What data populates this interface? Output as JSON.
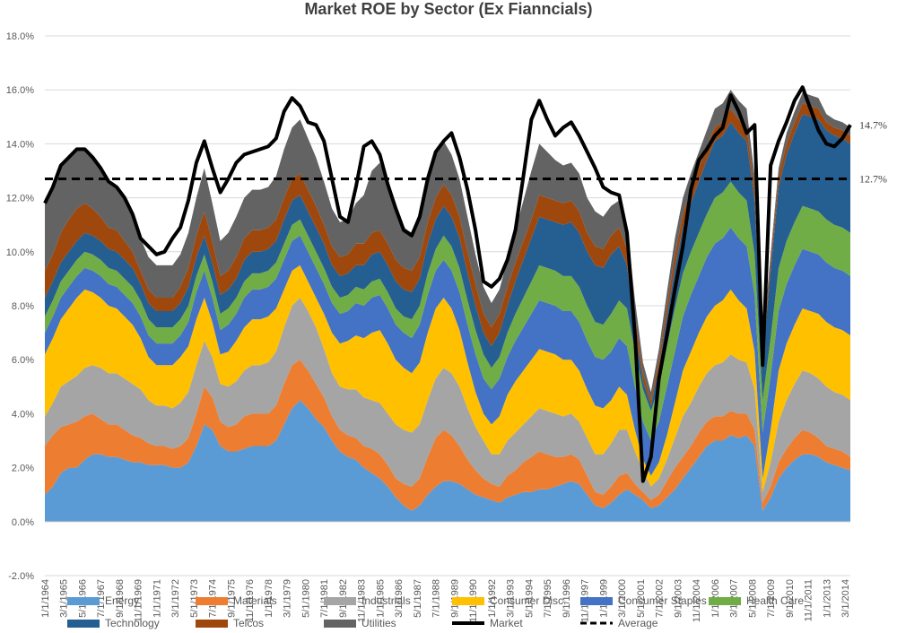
{
  "chart_data": {
    "type": "area",
    "stacked": true,
    "title": "Market ROE by Sector (Ex Fianncials)",
    "xlabel": "",
    "ylabel": "",
    "ylim": [
      -2.0,
      18.0
    ],
    "y_ticks": [
      "18.0%",
      "16.0%",
      "14.0%",
      "12.0%",
      "10.0%",
      "8.0%",
      "6.0%",
      "4.0%",
      "2.0%",
      "0.0%",
      "-2.0%"
    ],
    "x_ticks": [
      "1/1/1964",
      "3/1/1965",
      "5/1/1966",
      "7/1/1967",
      "9/1/1968",
      "11/1/1969",
      "1/1/1971",
      "3/1/1972",
      "5/1/1973",
      "7/1/1974",
      "9/1/1975",
      "11/1/1976",
      "1/1/1978",
      "3/1/1979",
      "5/1/1980",
      "7/1/1981",
      "9/1/1982",
      "11/1/1983",
      "1/1/1985",
      "3/1/1986",
      "5/1/1987",
      "7/1/1988",
      "9/1/1989",
      "11/1/1990",
      "1/1/1992",
      "3/1/1993",
      "5/1/1994",
      "7/1/1995",
      "9/1/1996",
      "11/1/1997",
      "1/1/1999",
      "3/1/2000",
      "5/1/2001",
      "7/1/2002",
      "9/1/2003",
      "11/1/2004",
      "1/1/2006",
      "3/1/2007",
      "5/1/2008",
      "7/1/2009",
      "9/1/2010",
      "11/1/2011",
      "1/1/2013",
      "3/1/2014"
    ],
    "x": [
      1964.0,
      1964.5,
      1965.0,
      1965.5,
      1966.0,
      1966.5,
      1967.0,
      1967.5,
      1968.0,
      1968.5,
      1969.0,
      1969.5,
      1970.0,
      1970.5,
      1971.0,
      1971.5,
      1972.0,
      1972.5,
      1973.0,
      1973.5,
      1974.0,
      1974.5,
      1975.0,
      1975.5,
      1976.0,
      1976.5,
      1977.0,
      1977.5,
      1978.0,
      1978.5,
      1979.0,
      1979.5,
      1980.0,
      1980.5,
      1981.0,
      1981.5,
      1982.0,
      1982.5,
      1983.0,
      1983.5,
      1984.0,
      1984.5,
      1985.0,
      1985.5,
      1986.0,
      1986.5,
      1987.0,
      1987.5,
      1988.0,
      1988.5,
      1989.0,
      1989.5,
      1990.0,
      1990.5,
      1991.0,
      1991.5,
      1992.0,
      1992.5,
      1993.0,
      1993.5,
      1994.0,
      1994.5,
      1995.0,
      1995.5,
      1996.0,
      1996.5,
      1997.0,
      1997.5,
      1998.0,
      1998.5,
      1999.0,
      1999.5,
      2000.0,
      2000.5,
      2001.0,
      2001.5,
      2002.0,
      2002.5,
      2003.0,
      2003.5,
      2004.0,
      2004.5,
      2005.0,
      2005.5,
      2006.0,
      2006.5,
      2007.0,
      2007.5,
      2008.0,
      2008.5,
      2009.0,
      2009.5,
      2010.0,
      2010.5,
      2011.0,
      2011.5,
      2012.0,
      2012.5,
      2013.0,
      2013.5,
      2014.0,
      2014.5
    ],
    "series": [
      {
        "name": "Energy",
        "color": "#5B9BD5",
        "values": [
          1.0,
          1.3,
          1.8,
          2.0,
          2.0,
          2.3,
          2.5,
          2.5,
          2.4,
          2.4,
          2.3,
          2.2,
          2.2,
          2.1,
          2.1,
          2.1,
          2.0,
          2.0,
          2.2,
          2.8,
          3.6,
          3.4,
          2.8,
          2.6,
          2.6,
          2.7,
          2.8,
          2.8,
          2.8,
          3.0,
          3.6,
          4.2,
          4.5,
          4.2,
          3.8,
          3.5,
          3.0,
          2.6,
          2.4,
          2.3,
          2.0,
          1.8,
          1.6,
          1.3,
          0.9,
          0.6,
          0.4,
          0.6,
          1.0,
          1.3,
          1.5,
          1.5,
          1.4,
          1.2,
          1.0,
          0.9,
          0.8,
          0.7,
          0.9,
          1.0,
          1.1,
          1.1,
          1.2,
          1.2,
          1.3,
          1.4,
          1.5,
          1.4,
          1.0,
          0.6,
          0.5,
          0.7,
          1.0,
          1.2,
          1.0,
          0.8,
          0.5,
          0.6,
          0.9,
          1.2,
          1.6,
          2.0,
          2.4,
          2.8,
          3.0,
          3.0,
          3.2,
          3.1,
          3.2,
          2.8,
          0.4,
          0.9,
          1.6,
          2.0,
          2.3,
          2.5,
          2.5,
          2.4,
          2.2,
          2.1,
          2.0,
          1.9
        ]
      },
      {
        "name": "Materials",
        "color": "#ED7D31",
        "values": [
          1.8,
          1.9,
          1.7,
          1.6,
          1.7,
          1.6,
          1.5,
          1.3,
          1.2,
          1.2,
          1.1,
          1.0,
          0.9,
          0.8,
          0.7,
          0.7,
          0.7,
          0.8,
          0.9,
          1.2,
          1.4,
          1.2,
          0.9,
          0.9,
          1.0,
          1.2,
          1.2,
          1.2,
          1.2,
          1.3,
          1.5,
          1.6,
          1.5,
          1.4,
          1.3,
          1.1,
          0.9,
          0.8,
          0.8,
          0.8,
          0.8,
          0.9,
          0.9,
          0.8,
          0.7,
          0.8,
          0.9,
          1.0,
          1.4,
          1.8,
          1.9,
          1.7,
          1.4,
          1.1,
          0.9,
          0.7,
          0.6,
          0.6,
          0.8,
          0.9,
          1.1,
          1.3,
          1.4,
          1.3,
          1.1,
          1.0,
          1.0,
          0.9,
          0.7,
          0.5,
          0.5,
          0.6,
          0.7,
          0.6,
          0.4,
          0.3,
          0.3,
          0.4,
          0.6,
          0.8,
          0.8,
          0.8,
          0.9,
          0.9,
          0.9,
          0.9,
          0.9,
          0.9,
          0.8,
          0.6,
          0.3,
          0.4,
          0.6,
          0.7,
          0.8,
          0.9,
          0.8,
          0.7,
          0.6,
          0.6,
          0.6,
          0.5
        ]
      },
      {
        "name": "Industrials",
        "color": "#A5A5A5",
        "values": [
          1.1,
          1.2,
          1.5,
          1.6,
          1.7,
          1.8,
          1.8,
          1.9,
          1.9,
          1.9,
          1.9,
          1.9,
          1.8,
          1.6,
          1.5,
          1.5,
          1.5,
          1.6,
          1.7,
          1.8,
          1.7,
          1.5,
          1.4,
          1.5,
          1.6,
          1.7,
          1.8,
          1.8,
          1.9,
          2.0,
          2.1,
          2.2,
          2.3,
          2.2,
          2.1,
          1.8,
          1.6,
          1.6,
          1.7,
          1.8,
          1.8,
          1.8,
          1.9,
          1.9,
          2.0,
          2.0,
          2.0,
          2.0,
          2.1,
          2.2,
          2.3,
          2.3,
          2.2,
          1.9,
          1.6,
          1.4,
          1.1,
          1.2,
          1.3,
          1.4,
          1.4,
          1.5,
          1.6,
          1.6,
          1.6,
          1.5,
          1.5,
          1.4,
          1.4,
          1.4,
          1.5,
          1.6,
          1.7,
          1.6,
          1.2,
          0.8,
          0.5,
          0.6,
          0.8,
          1.1,
          1.5,
          1.6,
          1.7,
          1.8,
          1.9,
          2.0,
          2.1,
          2.0,
          1.9,
          1.5,
          0.4,
          0.9,
          1.5,
          1.8,
          2.0,
          2.2,
          2.2,
          2.2,
          2.2,
          2.1,
          2.1,
          2.1
        ]
      },
      {
        "name": "Consumer Disc.",
        "color": "#FFC000",
        "values": [
          2.3,
          2.4,
          2.5,
          2.7,
          2.9,
          2.9,
          2.7,
          2.6,
          2.5,
          2.4,
          2.3,
          2.2,
          1.9,
          1.6,
          1.5,
          1.5,
          1.6,
          1.7,
          1.7,
          1.7,
          1.6,
          1.3,
          1.1,
          1.3,
          1.5,
          1.6,
          1.7,
          1.7,
          1.7,
          1.6,
          1.4,
          1.3,
          1.2,
          1.1,
          1.1,
          1.3,
          1.5,
          1.6,
          1.8,
          2.0,
          2.2,
          2.5,
          2.7,
          2.6,
          2.4,
          2.3,
          2.2,
          2.3,
          2.5,
          2.6,
          2.6,
          2.4,
          2.1,
          1.7,
          1.3,
          1.0,
          1.1,
          1.4,
          1.7,
          1.9,
          2.0,
          2.1,
          2.2,
          2.2,
          2.2,
          2.1,
          2.0,
          1.9,
          1.8,
          1.8,
          1.7,
          1.6,
          1.6,
          1.3,
          0.8,
          0.4,
          0.4,
          0.6,
          0.9,
          1.3,
          1.7,
          1.9,
          2.0,
          2.1,
          2.2,
          2.3,
          2.4,
          2.2,
          2.0,
          1.4,
          0.5,
          1.2,
          1.9,
          2.1,
          2.2,
          2.3,
          2.3,
          2.4,
          2.4,
          2.4,
          2.4,
          2.4
        ]
      },
      {
        "name": "Consumer Staples",
        "color": "#4472C4",
        "values": [
          0.8,
          0.8,
          0.8,
          0.8,
          0.8,
          0.8,
          0.8,
          0.8,
          0.8,
          0.8,
          0.8,
          0.8,
          0.8,
          0.8,
          0.8,
          0.8,
          0.8,
          0.8,
          0.9,
          1.0,
          1.0,
          0.9,
          0.9,
          1.0,
          1.0,
          1.1,
          1.1,
          1.1,
          1.1,
          1.1,
          1.1,
          1.1,
          1.1,
          1.1,
          1.1,
          1.1,
          1.1,
          1.1,
          1.1,
          1.2,
          1.2,
          1.3,
          1.3,
          1.3,
          1.3,
          1.3,
          1.3,
          1.4,
          1.4,
          1.4,
          1.4,
          1.4,
          1.4,
          1.4,
          1.4,
          1.3,
          1.3,
          1.4,
          1.4,
          1.5,
          1.6,
          1.7,
          1.8,
          1.8,
          1.8,
          1.8,
          1.8,
          1.8,
          1.8,
          1.8,
          1.8,
          1.8,
          1.8,
          1.8,
          1.6,
          1.4,
          1.3,
          1.5,
          1.8,
          1.9,
          2.0,
          2.1,
          2.1,
          2.2,
          2.3,
          2.3,
          2.3,
          2.3,
          2.3,
          2.1,
          1.7,
          2.0,
          2.2,
          2.2,
          2.2,
          2.2,
          2.2,
          2.2,
          2.2,
          2.2,
          2.2,
          2.2
        ]
      },
      {
        "name": "Health Care",
        "color": "#70AD47",
        "values": [
          0.6,
          0.6,
          0.6,
          0.6,
          0.6,
          0.6,
          0.6,
          0.6,
          0.6,
          0.6,
          0.6,
          0.6,
          0.6,
          0.6,
          0.6,
          0.6,
          0.6,
          0.6,
          0.6,
          0.6,
          0.6,
          0.6,
          0.6,
          0.6,
          0.6,
          0.6,
          0.6,
          0.6,
          0.6,
          0.6,
          0.6,
          0.6,
          0.6,
          0.6,
          0.6,
          0.6,
          0.6,
          0.6,
          0.6,
          0.6,
          0.6,
          0.6,
          0.6,
          0.6,
          0.6,
          0.6,
          0.7,
          0.7,
          0.8,
          0.8,
          0.9,
          0.9,
          0.9,
          0.9,
          0.9,
          0.9,
          0.8,
          0.8,
          0.9,
          1.0,
          1.1,
          1.2,
          1.3,
          1.3,
          1.3,
          1.3,
          1.3,
          1.3,
          1.3,
          1.3,
          1.3,
          1.4,
          1.4,
          1.4,
          1.3,
          1.2,
          1.1,
          1.3,
          1.5,
          1.6,
          1.6,
          1.6,
          1.6,
          1.6,
          1.7,
          1.7,
          1.7,
          1.7,
          1.7,
          1.5,
          1.2,
          1.4,
          1.6,
          1.6,
          1.6,
          1.6,
          1.6,
          1.6,
          1.6,
          1.6,
          1.6,
          1.6
        ]
      },
      {
        "name": "Technology",
        "color": "#255E91",
        "values": [
          0.7,
          0.7,
          0.7,
          0.7,
          0.7,
          0.7,
          0.7,
          0.7,
          0.7,
          0.7,
          0.7,
          0.7,
          0.6,
          0.6,
          0.6,
          0.6,
          0.6,
          0.6,
          0.7,
          0.7,
          0.7,
          0.7,
          0.7,
          0.7,
          0.7,
          0.8,
          0.8,
          0.8,
          0.8,
          0.8,
          0.9,
          0.9,
          0.9,
          0.9,
          0.9,
          0.9,
          0.8,
          0.8,
          0.8,
          0.8,
          0.9,
          1.0,
          1.0,
          1.0,
          1.0,
          1.0,
          1.0,
          1.0,
          1.1,
          1.1,
          1.1,
          1.1,
          1.1,
          1.0,
          0.9,
          0.8,
          0.8,
          0.9,
          1.0,
          1.2,
          1.4,
          1.6,
          1.8,
          1.8,
          1.8,
          1.9,
          2.0,
          2.0,
          2.0,
          2.1,
          2.1,
          2.2,
          2.0,
          1.6,
          0.8,
          0.3,
          0.2,
          0.7,
          1.1,
          1.5,
          1.7,
          1.8,
          1.9,
          2.0,
          2.1,
          2.1,
          2.2,
          2.2,
          2.2,
          2.0,
          1.5,
          2.5,
          3.0,
          3.2,
          3.3,
          3.4,
          3.4,
          3.4,
          3.3,
          3.3,
          3.3,
          3.3
        ]
      },
      {
        "name": "Telcos",
        "color": "#9E480E",
        "values": [
          1.0,
          1.0,
          1.1,
          1.2,
          1.2,
          1.1,
          1.0,
          0.9,
          0.8,
          0.8,
          0.7,
          0.6,
          0.5,
          0.5,
          0.5,
          0.5,
          0.5,
          0.6,
          0.7,
          0.8,
          0.9,
          0.8,
          0.7,
          0.7,
          0.8,
          0.8,
          0.8,
          0.8,
          0.8,
          0.8,
          0.8,
          0.8,
          0.8,
          0.8,
          0.8,
          0.7,
          0.7,
          0.7,
          0.7,
          0.8,
          0.8,
          0.8,
          0.8,
          0.8,
          0.8,
          0.8,
          0.8,
          0.8,
          0.8,
          0.8,
          0.8,
          0.8,
          0.8,
          0.8,
          0.8,
          0.7,
          0.7,
          0.7,
          0.7,
          0.7,
          0.7,
          0.7,
          0.8,
          0.8,
          0.8,
          0.8,
          0.8,
          0.8,
          0.7,
          0.7,
          0.7,
          0.7,
          0.7,
          0.6,
          0.5,
          0.3,
          0.2,
          0.3,
          0.4,
          0.5,
          0.5,
          0.5,
          0.5,
          0.5,
          0.5,
          0.5,
          0.5,
          0.5,
          0.5,
          0.4,
          0.3,
          0.3,
          0.4,
          0.4,
          0.4,
          0.4,
          0.4,
          0.4,
          0.3,
          0.3,
          0.3,
          0.3
        ]
      },
      {
        "name": "Utilities",
        "color": "#636363",
        "values": [
          2.5,
          2.5,
          2.5,
          2.3,
          2.2,
          2.0,
          1.9,
          1.8,
          1.7,
          1.6,
          1.6,
          1.4,
          1.2,
          1.2,
          1.2,
          1.2,
          1.2,
          1.2,
          1.3,
          1.4,
          1.6,
          1.4,
          1.3,
          1.4,
          1.5,
          1.5,
          1.5,
          1.5,
          1.5,
          1.6,
          1.8,
          1.9,
          2.0,
          1.9,
          1.8,
          1.6,
          1.4,
          1.3,
          1.3,
          1.5,
          1.8,
          2.3,
          2.5,
          2.2,
          1.9,
          1.5,
          1.4,
          1.5,
          1.6,
          1.6,
          1.6,
          1.5,
          1.4,
          1.3,
          1.1,
          1.0,
          0.9,
          0.9,
          1.0,
          1.2,
          1.5,
          1.8,
          1.9,
          1.7,
          1.5,
          1.4,
          1.4,
          1.4,
          1.3,
          1.3,
          1.2,
          1.1,
          1.0,
          0.9,
          0.6,
          0.4,
          0.3,
          0.4,
          0.5,
          0.6,
          0.6,
          0.6,
          0.6,
          0.6,
          0.7,
          0.7,
          0.7,
          0.7,
          0.7,
          0.5,
          0.3,
          0.3,
          0.3,
          0.4,
          0.4,
          0.4,
          0.4,
          0.4,
          0.3,
          0.3,
          0.3,
          0.3
        ]
      }
    ],
    "market": {
      "name": "Market",
      "color": "#000000",
      "values": [
        11.8,
        12.4,
        13.2,
        13.5,
        13.8,
        13.8,
        13.5,
        13.1,
        12.6,
        12.4,
        12.0,
        11.4,
        10.5,
        10.2,
        9.9,
        10.0,
        10.5,
        10.9,
        11.9,
        13.3,
        14.1,
        13.1,
        12.2,
        12.7,
        13.3,
        13.6,
        13.7,
        13.8,
        13.9,
        14.2,
        15.2,
        15.7,
        15.4,
        14.8,
        14.7,
        14.1,
        12.7,
        11.3,
        11.1,
        12.4,
        13.9,
        14.1,
        13.6,
        12.5,
        11.6,
        10.8,
        10.6,
        11.3,
        12.7,
        13.7,
        14.1,
        14.4,
        13.5,
        12.3,
        10.8,
        8.9,
        8.7,
        9.0,
        9.7,
        10.8,
        12.8,
        14.9,
        15.6,
        14.9,
        14.3,
        14.6,
        14.8,
        14.3,
        13.7,
        13.1,
        12.4,
        12.2,
        12.1,
        10.7,
        6.9,
        1.5,
        2.4,
        5.3,
        6.9,
        8.6,
        10.2,
        12.3,
        13.4,
        13.8,
        14.3,
        14.6,
        15.8,
        15.2,
        14.4,
        14.7,
        5.8,
        13.2,
        14.1,
        14.8,
        15.6,
        16.1,
        15.3,
        14.5,
        14.0,
        13.9,
        14.2,
        14.7
      ]
    },
    "average": {
      "name": "Average",
      "value": 12.7
    },
    "annotations": [
      {
        "text": "14.7%",
        "y": 14.7
      },
      {
        "text": "12.7%",
        "y": 12.7
      }
    ],
    "legend_position": "bottom",
    "grid": "horizontal"
  }
}
